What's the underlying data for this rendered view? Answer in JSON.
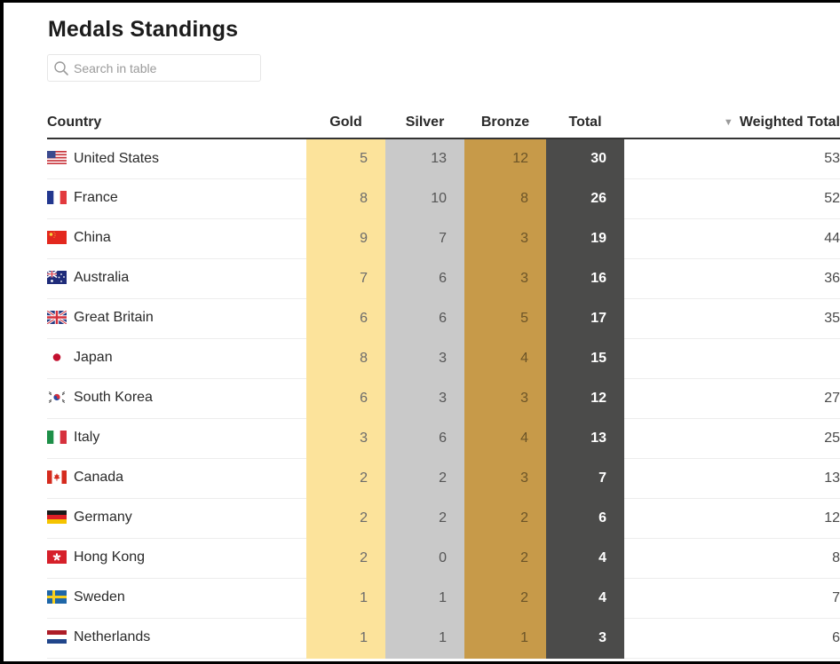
{
  "page": {
    "title": "Medals Standings",
    "search_placeholder": "Search in table"
  },
  "columns": {
    "country": "Country",
    "gold": "Gold",
    "silver": "Silver",
    "bronze": "Bronze",
    "total": "Total",
    "weighted_total": "Weighted Total",
    "sort_indicator": "▼"
  },
  "colors": {
    "gold": "#fce39b",
    "silver": "#c9c9c9",
    "bronze": "#c79a49",
    "total": "#4b4b4a"
  },
  "rows": [
    {
      "flag": "flag-united-states",
      "country": "United States",
      "gold": "5",
      "silver": "13",
      "bronze": "12",
      "total": "30",
      "weighted_total": "53"
    },
    {
      "flag": "flag-france",
      "country": "France",
      "gold": "8",
      "silver": "10",
      "bronze": "8",
      "total": "26",
      "weighted_total": "52"
    },
    {
      "flag": "flag-china",
      "country": "China",
      "gold": "9",
      "silver": "7",
      "bronze": "3",
      "total": "19",
      "weighted_total": "44"
    },
    {
      "flag": "flag-australia",
      "country": "Australia",
      "gold": "7",
      "silver": "6",
      "bronze": "3",
      "total": "16",
      "weighted_total": "36"
    },
    {
      "flag": "flag-great-britain",
      "country": "Great Britain",
      "gold": "6",
      "silver": "6",
      "bronze": "5",
      "total": "17",
      "weighted_total": "35"
    },
    {
      "flag": "flag-japan",
      "country": "Japan",
      "gold": "8",
      "silver": "3",
      "bronze": "4",
      "total": "15",
      "weighted_total": ""
    },
    {
      "flag": "flag-south-korea",
      "country": "South Korea",
      "gold": "6",
      "silver": "3",
      "bronze": "3",
      "total": "12",
      "weighted_total": "27"
    },
    {
      "flag": "flag-italy",
      "country": "Italy",
      "gold": "3",
      "silver": "6",
      "bronze": "4",
      "total": "13",
      "weighted_total": "25"
    },
    {
      "flag": "flag-canada",
      "country": "Canada",
      "gold": "2",
      "silver": "2",
      "bronze": "3",
      "total": "7",
      "weighted_total": "13"
    },
    {
      "flag": "flag-germany",
      "country": "Germany",
      "gold": "2",
      "silver": "2",
      "bronze": "2",
      "total": "6",
      "weighted_total": "12"
    },
    {
      "flag": "flag-hong-kong",
      "country": "Hong Kong",
      "gold": "2",
      "silver": "0",
      "bronze": "2",
      "total": "4",
      "weighted_total": "8"
    },
    {
      "flag": "flag-sweden",
      "country": "Sweden",
      "gold": "1",
      "silver": "1",
      "bronze": "2",
      "total": "4",
      "weighted_total": "7"
    },
    {
      "flag": "flag-netherlands",
      "country": "Netherlands",
      "gold": "1",
      "silver": "1",
      "bronze": "1",
      "total": "3",
      "weighted_total": "6"
    }
  ]
}
